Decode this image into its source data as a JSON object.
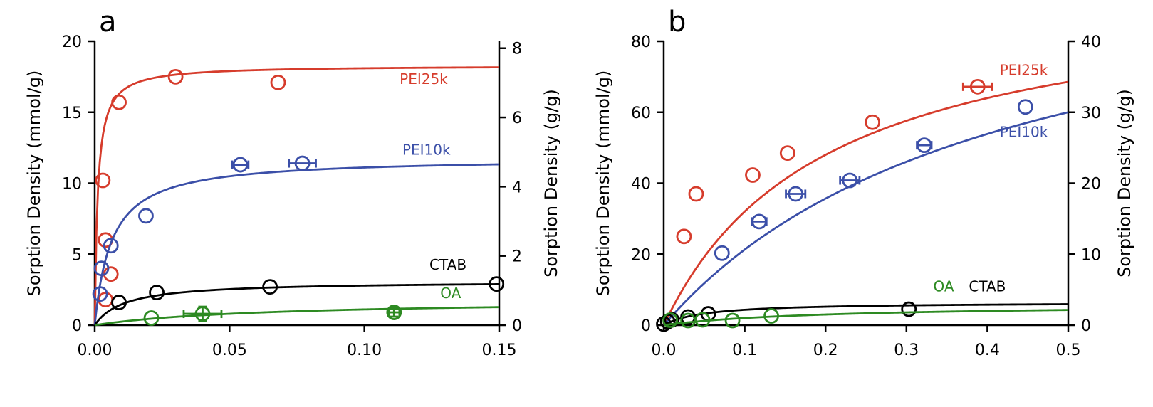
{
  "chart_data": [
    {
      "panel": "a",
      "type": "scatter",
      "ylabel_left": "Sorption Density (mmol/g)",
      "ylabel_right": "Sorption Density (g/g)",
      "xlabel": "",
      "xlim": [
        0,
        0.15
      ],
      "ylim_left": [
        0,
        20
      ],
      "ylim_right": [
        0,
        8.2
      ],
      "xticks": [
        "0.00",
        "0.05",
        "0.10",
        "0.15"
      ],
      "xtick_values": [
        0,
        0.05,
        0.1,
        0.15
      ],
      "yticks_left": [
        "0",
        "5",
        "10",
        "15",
        "20"
      ],
      "ytick_values_left": [
        0,
        5,
        10,
        15,
        20
      ],
      "yticks_right": [
        "0",
        "2",
        "4",
        "6",
        "8"
      ],
      "ytick_values_right": [
        0,
        2,
        4,
        6,
        8
      ],
      "grid": false,
      "series": [
        {
          "name": "PEI25k",
          "color": "#d63c2c",
          "label_x": 0.122,
          "label_y": 17.0,
          "points": [
            [
              0.003,
              10.2
            ],
            [
              0.004,
              6.0
            ],
            [
              0.004,
              1.8
            ],
            [
              0.006,
              3.6
            ],
            [
              0.009,
              15.7
            ],
            [
              0.03,
              17.5
            ],
            [
              0.068,
              17.1
            ]
          ],
          "xerr": [
            0,
            0,
            0,
            0,
            0,
            0,
            0
          ],
          "fit": {
            "qmax": 18.3,
            "K": 900
          }
        },
        {
          "name": "PEI10k",
          "color": "#3b4fa8",
          "label_x": 0.123,
          "label_y": 12.0,
          "points": [
            [
              0.002,
              2.2
            ],
            [
              0.0025,
              4.0
            ],
            [
              0.006,
              5.6
            ],
            [
              0.019,
              7.7
            ],
            [
              0.054,
              11.3
            ],
            [
              0.077,
              11.4
            ]
          ],
          "xerr": [
            0,
            0,
            0,
            0,
            0.003,
            0.005
          ],
          "fit": {
            "qmax": 11.8,
            "K": 160
          }
        },
        {
          "name": "CTAB",
          "color": "#000000",
          "label_x": 0.131,
          "label_y": 3.9,
          "points": [
            [
              0.009,
              1.6
            ],
            [
              0.023,
              2.3
            ],
            [
              0.065,
              2.7
            ],
            [
              0.149,
              2.9
            ]
          ],
          "xerr": [
            0,
            0,
            0,
            0
          ],
          "fit": {
            "qmax": 3.1,
            "K": 90
          }
        },
        {
          "name": "OA",
          "color": "#2d8a22",
          "label_x": 0.132,
          "label_y": 1.9,
          "points": [
            [
              0.021,
              0.5
            ],
            [
              0.04,
              0.8
            ],
            [
              0.111,
              0.9
            ]
          ],
          "xerr": [
            0,
            0.007,
            0.002
          ],
          "yerr": [
            0,
            0.5,
            0.3
          ],
          "fit": {
            "qmax": 1.8,
            "K": 16
          }
        }
      ]
    },
    {
      "panel": "b",
      "type": "scatter",
      "ylabel_left": "Sorption Density (mmol/g)",
      "ylabel_right": "Sorption Density (g/g)",
      "xlabel": "",
      "xlim": [
        0,
        0.5
      ],
      "ylim_left": [
        0,
        80
      ],
      "ylim_right": [
        0,
        40
      ],
      "xticks": [
        "0.0",
        "0.1",
        "0.2",
        "0.3",
        "0.4",
        "0.5"
      ],
      "xtick_values": [
        0,
        0.1,
        0.2,
        0.3,
        0.4,
        0.5
      ],
      "yticks_left": [
        "0",
        "20",
        "40",
        "60",
        "80"
      ],
      "ytick_values_left": [
        0,
        20,
        40,
        60,
        80
      ],
      "yticks_right": [
        "0",
        "10",
        "20",
        "30",
        "40"
      ],
      "ytick_values_right": [
        0,
        10,
        20,
        30,
        40
      ],
      "grid": false,
      "series": [
        {
          "name": "PEI25k",
          "color": "#d63c2c",
          "label_x": 0.445,
          "label_y": 70.5,
          "points": [
            [
              0.025,
              25.0
            ],
            [
              0.04,
              37.0
            ],
            [
              0.11,
              42.3
            ],
            [
              0.153,
              48.5
            ],
            [
              0.258,
              57.2
            ],
            [
              0.388,
              67.2
            ]
          ],
          "xerr": [
            0,
            0,
            0,
            0,
            0,
            0.018
          ],
          "fit": {
            "qmax": 96,
            "K": 5.0
          }
        },
        {
          "name": "PEI10k",
          "color": "#3b4fa8",
          "label_x": 0.445,
          "label_y": 53.0,
          "points": [
            [
              0.072,
              20.3
            ],
            [
              0.118,
              29.2
            ],
            [
              0.163,
              37.0
            ],
            [
              0.23,
              40.8
            ],
            [
              0.322,
              50.7
            ],
            [
              0.447,
              61.5
            ]
          ],
          "xerr": [
            0,
            0.009,
            0.012,
            0.012,
            0.009,
            0
          ],
          "fit": {
            "qmax": 110,
            "K": 2.4
          }
        },
        {
          "name": "CTAB",
          "color": "#000000",
          "label_x": 0.4,
          "label_y": 9.5,
          "points": [
            [
              0.0,
              0.3
            ],
            [
              0.005,
              1.0
            ],
            [
              0.01,
              1.5
            ],
            [
              0.03,
              2.3
            ],
            [
              0.055,
              3.2
            ],
            [
              0.303,
              4.5
            ]
          ],
          "xerr": [
            0,
            0,
            0,
            0,
            0,
            0
          ],
          "fit": {
            "qmax": 6.5,
            "K": 20
          }
        },
        {
          "name": "OA",
          "color": "#2d8a22",
          "label_x": 0.346,
          "label_y": 9.5,
          "points": [
            [
              0.008,
              1.4
            ],
            [
              0.03,
              1.3
            ],
            [
              0.048,
              1.5
            ],
            [
              0.085,
              1.3
            ],
            [
              0.133,
              2.6
            ]
          ],
          "xerr": [
            0,
            0,
            0,
            0,
            0
          ],
          "fit": {
            "qmax": 6.0,
            "K": 5.0
          }
        }
      ]
    }
  ]
}
